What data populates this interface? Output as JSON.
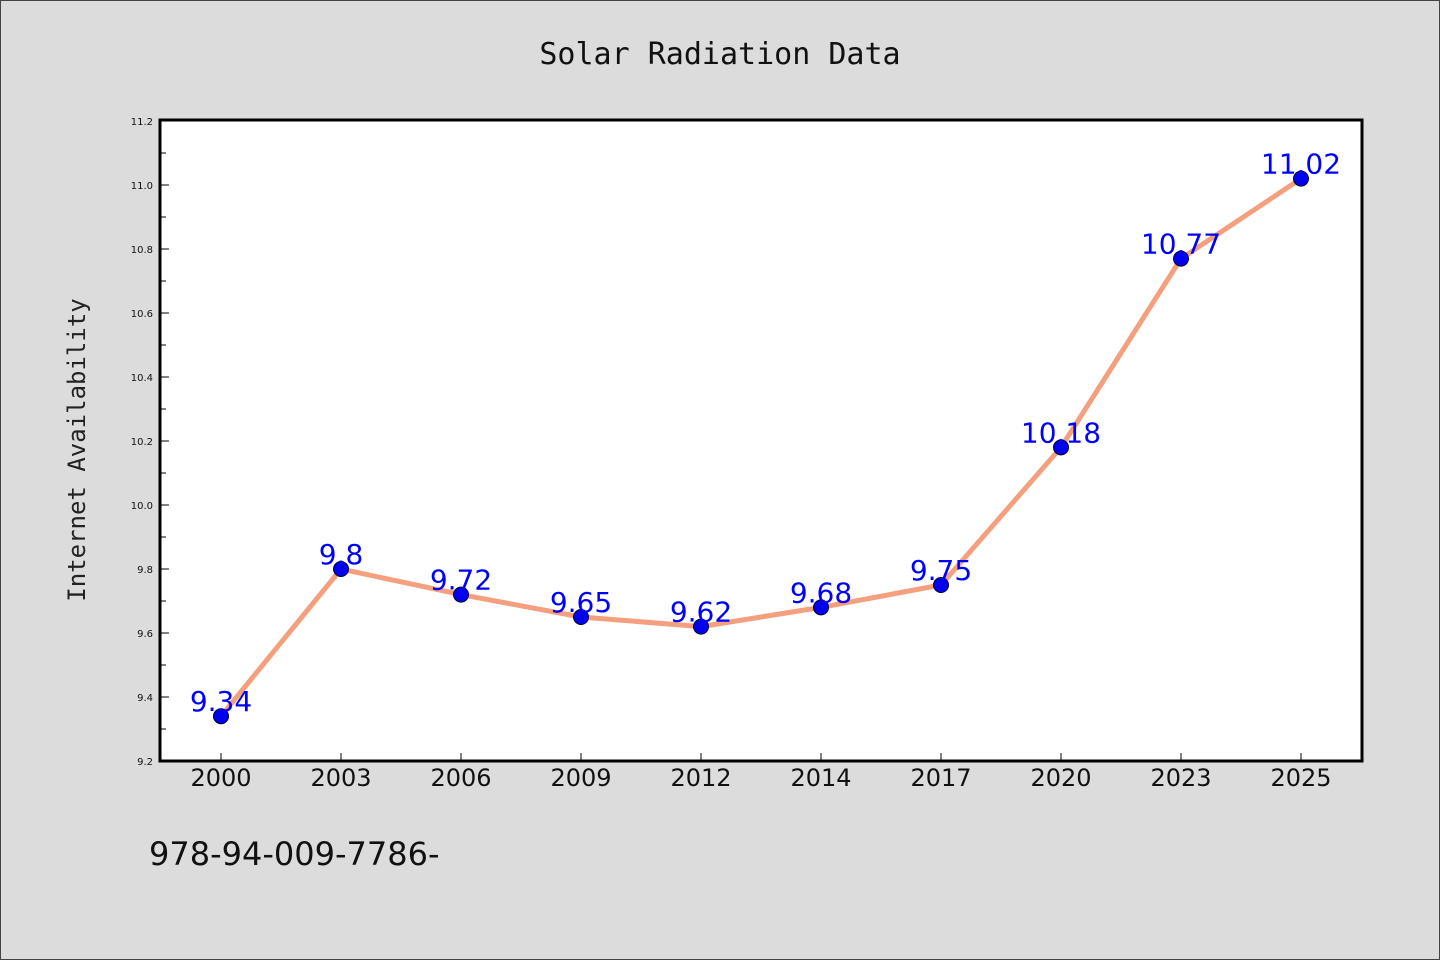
{
  "chart_data": {
    "type": "line",
    "title": "Solar Radiation Data",
    "xlabel": "",
    "ylabel": "Internet Availability",
    "categories": [
      "2000",
      "2003",
      "2006",
      "2009",
      "2012",
      "2014",
      "2017",
      "2020",
      "2023",
      "2025"
    ],
    "series": [
      {
        "values": [
          9.34,
          9.8,
          9.72,
          9.65,
          9.62,
          9.68,
          9.75,
          10.18,
          10.77,
          11.02
        ],
        "labels": [
          "9.34",
          "9.8",
          "9.72",
          "9.65",
          "9.62",
          "9.68",
          "9.75",
          "10.18",
          "10.77",
          "11.02"
        ]
      }
    ],
    "ylim": [
      9.2,
      11.2
    ],
    "yticks": [
      "9.2",
      "9.4",
      "9.6",
      "9.8",
      "10.0",
      "10.2",
      "10.4",
      "10.6",
      "10.8",
      "11.0",
      "11.2"
    ],
    "grid": false,
    "legend": "none",
    "colors": {
      "line": "#f4a07e",
      "marker": "#0000ee",
      "data_label": "#0000ff",
      "background": "#dcdcdc",
      "plot_background": "#ffffff"
    }
  },
  "annotation": "978-94-009-7786-"
}
